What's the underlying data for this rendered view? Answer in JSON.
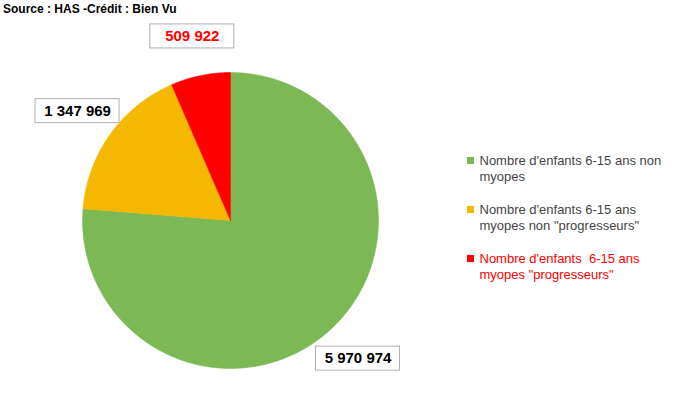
{
  "chart_data": {
    "type": "pie",
    "title": "Source : HAS -Crédit : Bien Vu",
    "categories": [
      "Nombre d'enfants 6-15 ans non myopes",
      "Nombre d'enfants 6-15 ans myopes non \"progresseurs\"",
      "Nombre d'enfants  6-15 ans myopes \"progresseurs\""
    ],
    "values": [
      5970974,
      1347969,
      509922
    ],
    "value_labels": [
      "5 970 974",
      "1 347 969",
      "509 922"
    ],
    "colors": [
      "#7cb955",
      "#f5b800",
      "#ff0000"
    ],
    "data_labels": true,
    "legend": "right"
  }
}
